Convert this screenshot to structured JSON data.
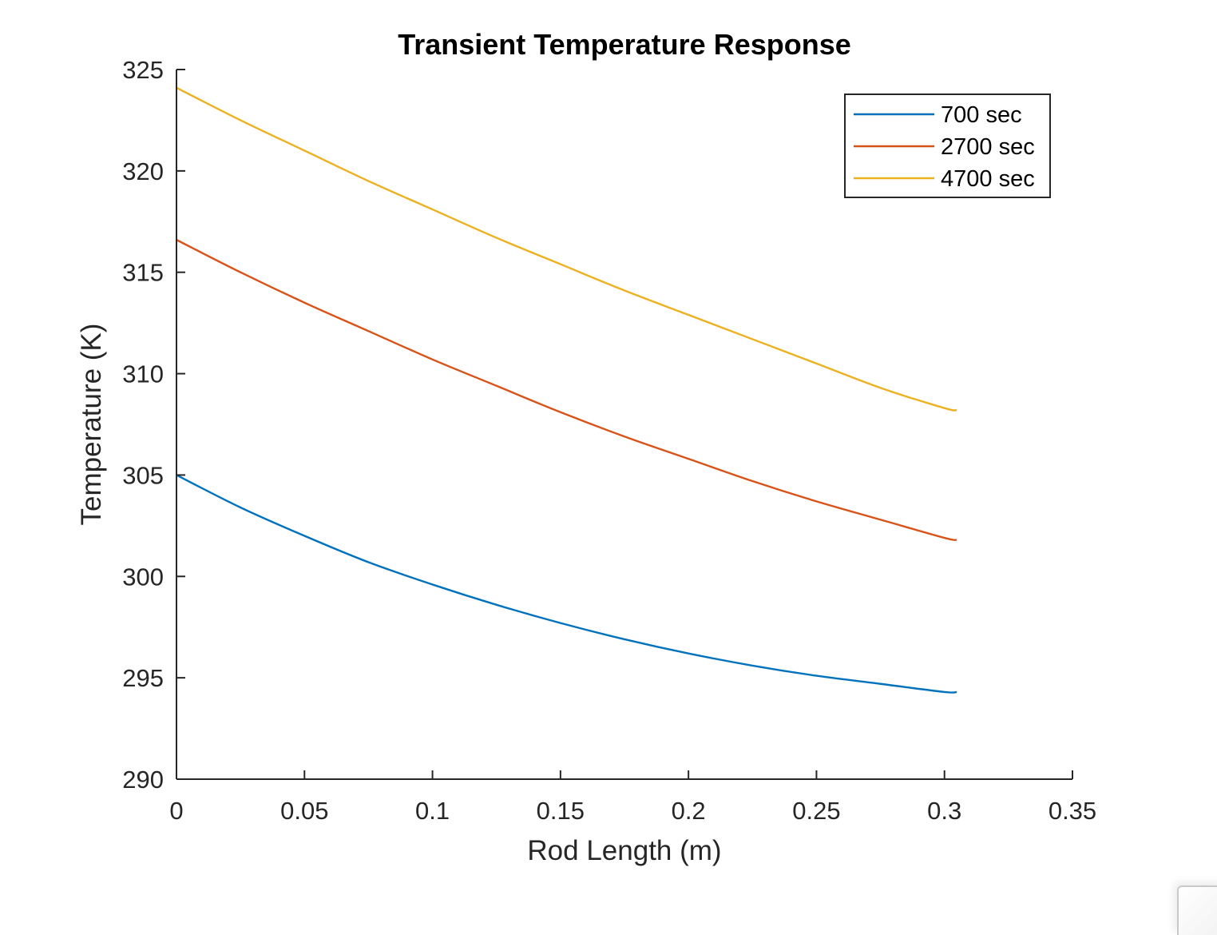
{
  "chart_data": {
    "type": "line",
    "title": "Transient Temperature Response",
    "xlabel": "Rod Length (m)",
    "ylabel": "Temperature (K)",
    "xlim": [
      0,
      0.35
    ],
    "ylim": [
      290,
      325
    ],
    "xticks": [
      0,
      0.05,
      0.1,
      0.15,
      0.2,
      0.25,
      0.3,
      0.35
    ],
    "xtick_labels": [
      "0",
      "0.05",
      "0.1",
      "0.15",
      "0.2",
      "0.25",
      "0.3",
      "0.35"
    ],
    "yticks": [
      290,
      295,
      300,
      305,
      310,
      315,
      320,
      325
    ],
    "ytick_labels": [
      "290",
      "295",
      "300",
      "305",
      "310",
      "315",
      "320",
      "325"
    ],
    "grid": false,
    "legend_position": "top-right",
    "x": [
      0,
      0.025,
      0.05,
      0.075,
      0.1,
      0.125,
      0.15,
      0.175,
      0.2,
      0.225,
      0.25,
      0.275,
      0.3,
      0.3048
    ],
    "series": [
      {
        "name": "700 sec",
        "color": "#0072BD",
        "values": [
          305.0,
          303.4,
          302.0,
          300.7,
          299.6,
          298.6,
          297.7,
          296.9,
          296.2,
          295.6,
          295.1,
          294.7,
          294.3,
          294.3
        ]
      },
      {
        "name": "2700 sec",
        "color": "#D95319",
        "values": [
          316.6,
          315.0,
          313.5,
          312.1,
          310.7,
          309.4,
          308.1,
          306.9,
          305.8,
          304.7,
          303.7,
          302.8,
          301.9,
          301.8
        ]
      },
      {
        "name": "4700 sec",
        "color": "#EDB120",
        "values": [
          324.1,
          322.5,
          321.0,
          319.5,
          318.1,
          316.7,
          315.4,
          314.1,
          312.9,
          311.7,
          310.5,
          309.3,
          308.3,
          308.2
        ]
      }
    ]
  }
}
